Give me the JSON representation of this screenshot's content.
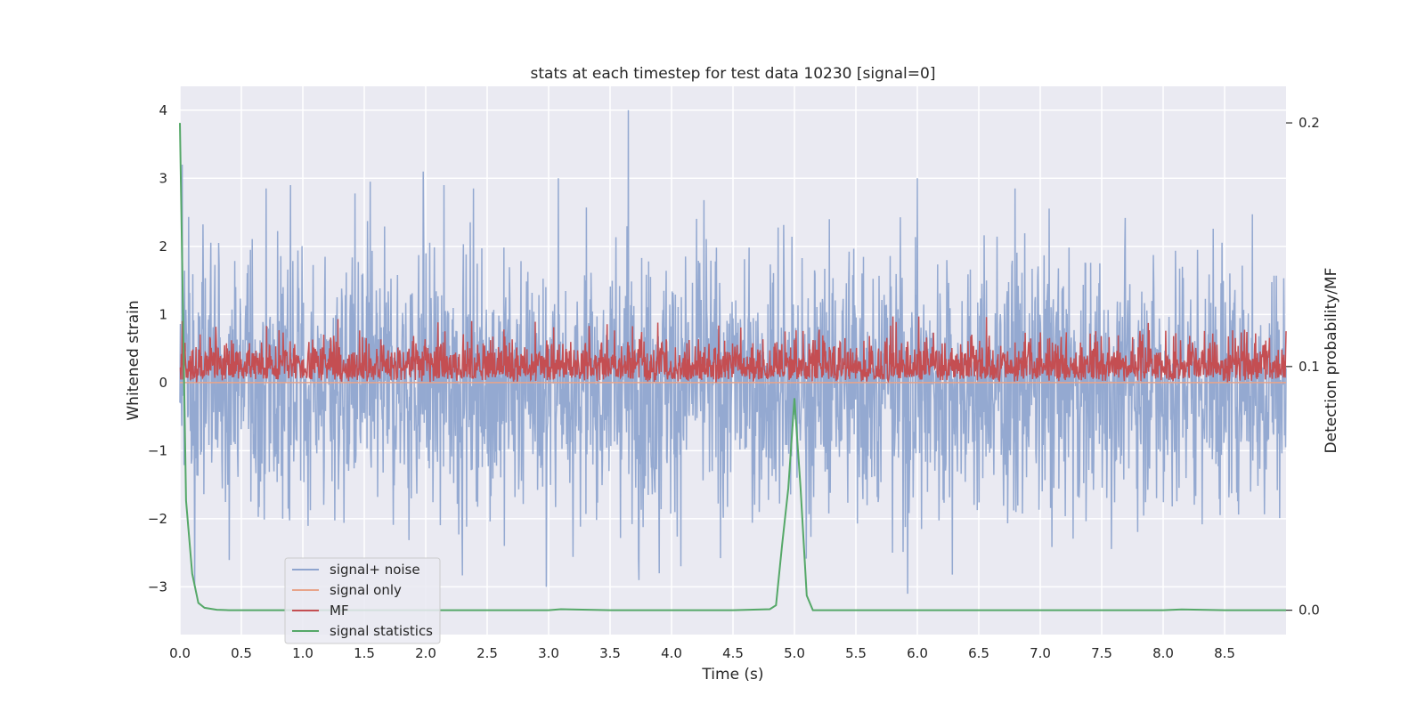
{
  "chart_data": {
    "type": "line",
    "title": "stats at each timestep for test data 10230 [signal=0]",
    "xlabel": "Time (s)",
    "ylabel": "Whitened strain",
    "y2label": "Detection probability/MF",
    "xlim": [
      0.0,
      9.0
    ],
    "ylim": [
      -3.7,
      4.35
    ],
    "y2lim": [
      -0.01,
      0.215
    ],
    "xticks": [
      0.0,
      0.5,
      1.0,
      1.5,
      2.0,
      2.5,
      3.0,
      3.5,
      4.0,
      4.5,
      5.0,
      5.5,
      6.0,
      6.5,
      7.0,
      7.5,
      8.0,
      8.5
    ],
    "xtick_labels": [
      "0.0",
      "0.5",
      "1.0",
      "1.5",
      "2.0",
      "2.5",
      "3.0",
      "3.5",
      "4.0",
      "4.5",
      "5.0",
      "5.5",
      "6.0",
      "6.5",
      "7.0",
      "7.5",
      "8.0",
      "8.5"
    ],
    "yticks": [
      -3,
      -2,
      -1,
      0,
      1,
      2,
      3,
      4
    ],
    "ytick_labels": [
      "−3",
      "−2",
      "−1",
      "0",
      "1",
      "2",
      "3",
      "4"
    ],
    "y2ticks": [
      0.0,
      0.1,
      0.2
    ],
    "y2tick_labels": [
      "0.0",
      "0.1",
      "0.2"
    ],
    "grid": true,
    "legend_position": "lower-left",
    "series": [
      {
        "name": "signal+ noise",
        "axis": "left",
        "color": "#8fa5cf",
        "kind": "noise",
        "description": "whitened noise, roughly zero-mean, amplitude about ±2.5 with peaks",
        "peaks": [
          [
            0.02,
            3.2
          ],
          [
            0.9,
            2.9
          ],
          [
            1.55,
            2.95
          ],
          [
            1.98,
            3.1
          ],
          [
            2.15,
            2.9
          ],
          [
            3.08,
            3.0
          ],
          [
            3.65,
            4.0
          ],
          [
            5.92,
            -3.1
          ],
          [
            6.0,
            3.0
          ],
          [
            0.12,
            -3.0
          ],
          [
            2.98,
            -3.0
          ],
          [
            3.9,
            -2.8
          ]
        ]
      },
      {
        "name": "signal only",
        "axis": "left",
        "color": "#e8a48a",
        "x": [
          0.0,
          9.0
        ],
        "y": [
          0.0,
          0.0
        ]
      },
      {
        "name": "MF",
        "axis": "left",
        "color": "#c44e52",
        "kind": "band",
        "description": "matched-filter output between 0 and about 0.9"
      },
      {
        "name": "signal statistics",
        "axis": "right",
        "color": "#55a868",
        "x": [
          0.0,
          0.05,
          0.1,
          0.15,
          0.2,
          0.3,
          0.4,
          0.5,
          1.0,
          2.0,
          3.0,
          3.1,
          3.5,
          4.0,
          4.5,
          4.8,
          4.85,
          4.9,
          4.95,
          5.0,
          5.05,
          5.1,
          5.15,
          5.2,
          6.0,
          7.0,
          8.0,
          8.15,
          8.5,
          9.0
        ],
        "y": [
          0.2,
          0.045,
          0.015,
          0.003,
          0.001,
          0.0002,
          0.0,
          0.0,
          0.0,
          0.0,
          0.0,
          0.0004,
          0.0,
          0.0,
          0.0,
          0.0004,
          0.002,
          0.027,
          0.05,
          0.087,
          0.05,
          0.006,
          0.0,
          0.0,
          0.0,
          0.0,
          0.0,
          0.0003,
          0.0,
          0.0
        ]
      }
    ]
  }
}
